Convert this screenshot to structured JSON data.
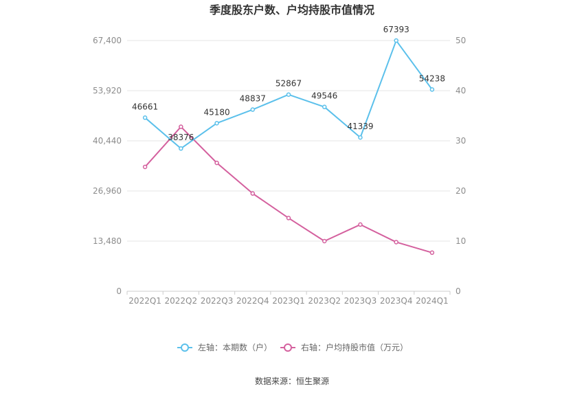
{
  "chart_data": {
    "type": "line",
    "title": "季度股东户数、户均持股市值情况",
    "categories": [
      "2022Q1",
      "2022Q2",
      "2022Q3",
      "2022Q4",
      "2023Q1",
      "2023Q2",
      "2023Q3",
      "2023Q4",
      "2024Q1"
    ],
    "series": [
      {
        "name": "左轴：本期数（户）",
        "axis": "left",
        "color": "#5bc0eb",
        "values": [
          46661,
          38376,
          45180,
          48837,
          52867,
          49546,
          41339,
          67393,
          54238
        ],
        "labels": [
          "46661",
          "38376",
          "45180",
          "48837",
          "52867",
          "49546",
          "41339",
          "67393",
          "54238"
        ]
      },
      {
        "name": "右轴：户均持股市值（万元）",
        "axis": "right",
        "color": "#d4609e",
        "values": [
          24.8,
          32.8,
          25.6,
          19.5,
          14.6,
          10.0,
          13.3,
          9.8,
          7.7
        ]
      }
    ],
    "left_axis": {
      "min": 0,
      "max": 67400,
      "ticks": [
        0,
        13480,
        26960,
        40440,
        53920,
        67400
      ],
      "tick_labels": [
        "0",
        "13,480",
        "26,960",
        "40,440",
        "53,920",
        "67,400"
      ]
    },
    "right_axis": {
      "min": 0,
      "max": 50,
      "ticks": [
        0,
        10,
        20,
        30,
        40,
        50
      ],
      "tick_labels": [
        "0",
        "10",
        "20",
        "30",
        "40",
        "50"
      ]
    },
    "grid": true,
    "legend_position": "bottom"
  },
  "source": "数据来源：恒生聚源"
}
